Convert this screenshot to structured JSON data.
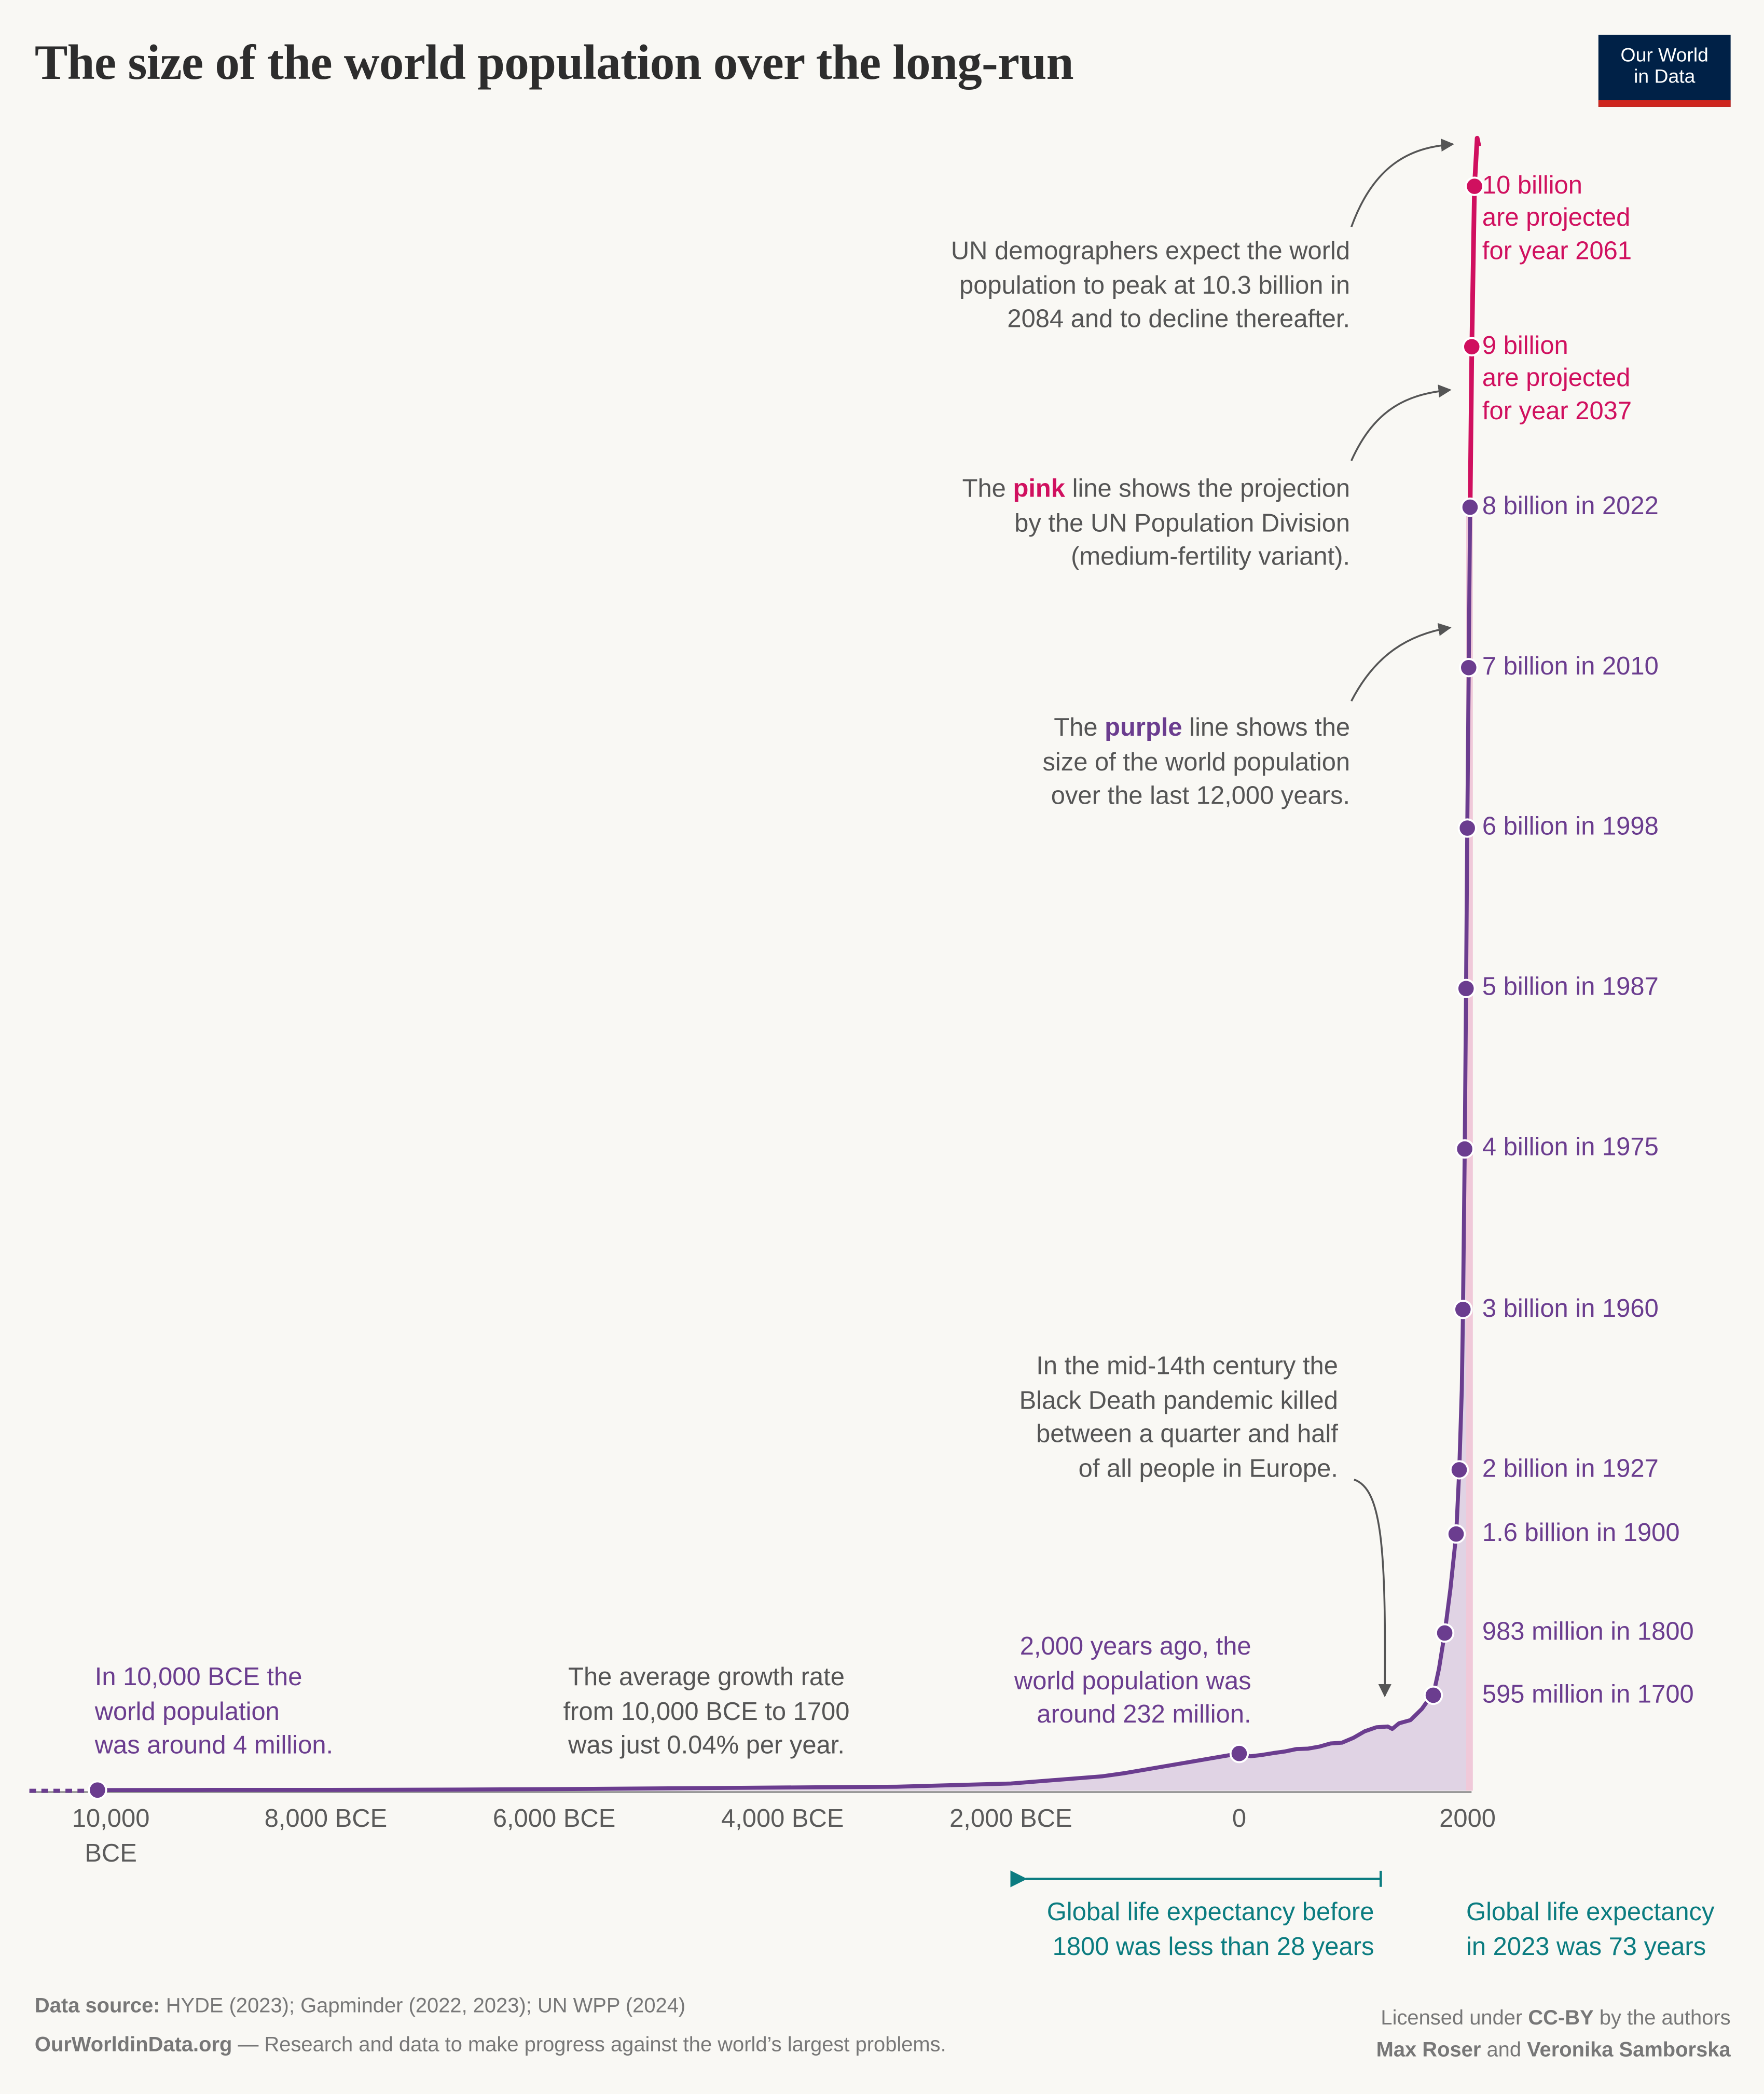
{
  "title": "The size of the world population over the long-run",
  "logo": {
    "line1": "Our World",
    "line2": "in Data"
  },
  "colors": {
    "purple": "#6b3d8f",
    "pink": "#d0105f",
    "teal": "#0b7c80",
    "logo_bg": "#002147",
    "logo_accent": "#ce261e",
    "fill_purple": "#e0d3e4",
    "fill_pink": "#f0c9d9"
  },
  "annotations": {
    "un_peak": [
      "UN demographers expect the world",
      "population to peak at 10.3 billion in",
      "2084 and to decline thereafter."
    ],
    "pink_line": {
      "pre": "The ",
      "key": "pink",
      "post": " line shows the projection",
      "line2": "by the UN Population Division",
      "line3": "(medium-fertility variant)."
    },
    "purple_line": {
      "pre": "The ",
      "key": "purple",
      "post": " line shows the",
      "line2": "size of the world population",
      "line3": "over the last 12,000 years."
    },
    "black_death": [
      "In the mid-14th century the",
      "Black Death pandemic killed",
      "between a quarter and half",
      "of all people in Europe."
    ],
    "bce_10000": [
      "In 10,000 BCE the",
      "world population",
      "was around 4 million."
    ],
    "growth_rate": [
      "The average growth rate",
      "from 10,000 BCE to 1700",
      "was just 0.04% per year."
    ],
    "year_0": [
      "2,000 years ago, the",
      "world population was",
      "around 232 million."
    ],
    "life_exp_before": [
      "Global life expectancy before",
      "1800 was less than 28 years"
    ],
    "life_exp_2023": [
      "Global life expectancy",
      "in 2023 was 73 years"
    ]
  },
  "milestones": [
    {
      "label": [
        "10 billion",
        "are projected",
        "for year 2061"
      ],
      "year": 2061,
      "value": 10000,
      "projected": true
    },
    {
      "label": [
        "9 billion",
        "are projected",
        "for year 2037"
      ],
      "year": 2037,
      "value": 9000,
      "projected": true
    },
    {
      "label": [
        "8 billion in 2022"
      ],
      "year": 2022,
      "value": 8000
    },
    {
      "label": [
        "7 billion in 2010"
      ],
      "year": 2010,
      "value": 7000
    },
    {
      "label": [
        "6 billion in 1998"
      ],
      "year": 1998,
      "value": 6000
    },
    {
      "label": [
        "5 billion in 1987"
      ],
      "year": 1987,
      "value": 5000
    },
    {
      "label": [
        "4 billion in 1975"
      ],
      "year": 1975,
      "value": 4000
    },
    {
      "label": [
        "3 billion in 1960"
      ],
      "year": 1960,
      "value": 3000
    },
    {
      "label": [
        "2 billion in 1927"
      ],
      "year": 1927,
      "value": 2000
    },
    {
      "label": [
        "1.6 billion in 1900"
      ],
      "year": 1900,
      "value": 1600
    },
    {
      "label": [
        "983 million in 1800"
      ],
      "year": 1800,
      "value": 983
    },
    {
      "label": [
        "595 million in 1700"
      ],
      "year": 1700,
      "value": 595
    }
  ],
  "chart_data": {
    "type": "line",
    "title": "The size of the world population over the long-run",
    "xlabel": "",
    "ylabel": "",
    "xlim": [
      -10000,
      2100
    ],
    "ylim": [
      0,
      10300
    ],
    "grid": false,
    "x_ticks": [
      {
        "value": -10000,
        "label": [
          "10,000",
          "BCE"
        ]
      },
      {
        "value": -8000,
        "label": [
          "8,000 BCE"
        ]
      },
      {
        "value": -6000,
        "label": [
          "6,000 BCE"
        ]
      },
      {
        "value": -4000,
        "label": [
          "4,000 BCE"
        ]
      },
      {
        "value": -2000,
        "label": [
          "2,000 BCE"
        ]
      },
      {
        "value": 0,
        "label": [
          "0"
        ]
      },
      {
        "value": 2000,
        "label": [
          "2000"
        ]
      }
    ],
    "series": [
      {
        "unit": "million",
        "color": "#6b3d8f",
        "x": [
          -10000,
          -9000,
          -8000,
          -7000,
          -6000,
          -5000,
          -4000,
          -3000,
          -2000,
          -1200,
          -1000,
          0,
          100,
          200,
          300,
          400,
          500,
          600,
          700,
          800,
          900,
          1000,
          1100,
          1200,
          1300,
          1340,
          1400,
          1500,
          1600,
          1650,
          1700,
          1750,
          1800,
          1850,
          1900,
          1927,
          1950,
          1960,
          1975,
          1987,
          1998,
          2010,
          2022,
          2023
        ],
        "y": [
          4,
          5,
          5,
          7,
          10,
          15,
          20,
          25,
          45,
          90,
          110,
          232,
          215,
          223,
          235,
          245,
          260,
          262,
          275,
          295,
          300,
          330,
          370,
          395,
          400,
          385,
          420,
          440,
          510,
          560,
          595,
          760,
          983,
          1260,
          1600,
          2000,
          2500,
          3000,
          4000,
          5000,
          6000,
          7000,
          8000,
          8050
        ]
      },
      {
        "unit": "million",
        "color": "#d0105f",
        "projection": true,
        "x": [
          2023,
          2037,
          2061,
          2084,
          2100
        ],
        "y": [
          8050,
          9000,
          10000,
          10300,
          10250
        ]
      }
    ],
    "points": [
      {
        "x": -10000,
        "y": 4
      },
      {
        "x": 0,
        "y": 232
      }
    ]
  },
  "footer": {
    "source_label": "Data source:",
    "source": " HYDE (2023); Gapminder (2022, 2023); UN WPP (2024)",
    "site": "OurWorldinData.org",
    "tagline": " — Research and data to make progress against the world’s largest problems.",
    "license_pre": "Licensed under ",
    "license": "CC-BY",
    "license_post": " by the authors",
    "author1": "Max Roser",
    "and": " and ",
    "author2": "Veronika Samborska"
  }
}
